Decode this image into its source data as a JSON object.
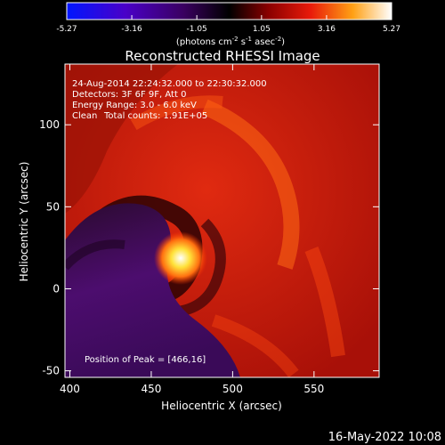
{
  "colorbar": {
    "tick_labels": [
      "-5.27",
      "-3.16",
      "-1.05",
      "1.05",
      "3.16",
      "5.27"
    ],
    "tick_values": [
      -5.27,
      -3.16,
      -1.05,
      1.05,
      3.16,
      5.27
    ],
    "range": [
      -5.27,
      5.27
    ],
    "unit_parts": {
      "pre": "(photons cm",
      "exp1": "-2",
      "mid": " s",
      "exp2": "-1",
      "mid2": " asec",
      "exp3": "-2",
      "post": ")"
    }
  },
  "chart_data": {
    "type": "heatmap",
    "title": "Reconstructed RHESSI Image",
    "xlabel": "Heliocentric X (arcsec)",
    "ylabel": "Heliocentric Y (arcsec)",
    "xlim": [
      397,
      590
    ],
    "ylim": [
      -54,
      137
    ],
    "x_ticks": [
      400,
      450,
      500,
      550
    ],
    "y_ticks": [
      -50,
      0,
      50,
      100
    ],
    "peak": {
      "x": 466,
      "y": 16
    },
    "colormap": [
      "#0016ff",
      "#4a00a8",
      "#3b0f5a",
      "#000000",
      "#7a0000",
      "#d01010",
      "#ff5a0a",
      "#ffd21e",
      "#ffffff"
    ]
  },
  "info": {
    "time_range": "24-Aug-2014 22:24:32.000 to 22:30:32.000",
    "detectors": "Detectors: 3F 6F 9F, Att 0",
    "energy_range": "Energy Range: 3.0 - 6.0 keV",
    "method": "Clean",
    "total_counts": "Total counts: 1.91E+05",
    "peak_position": "Position of Peak = [466,16]"
  },
  "footer": {
    "date": "16-May-2022 10:08"
  }
}
